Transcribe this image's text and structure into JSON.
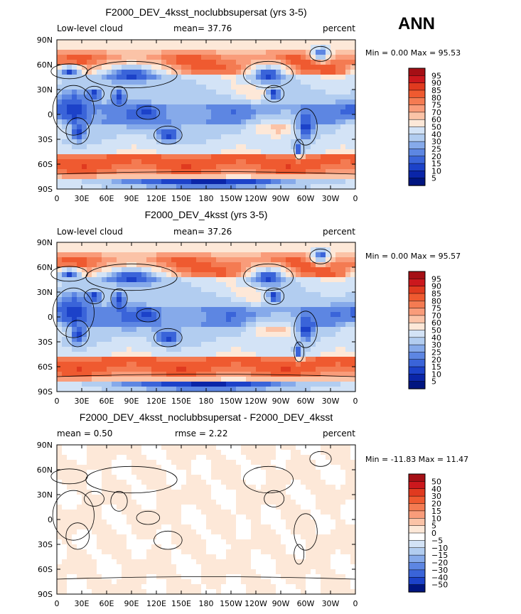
{
  "season_label": "ANN",
  "chart_data": [
    {
      "type": "heatmap",
      "title": "F2000_DEV_4ksst_noclubbsupersat (yrs 3-5)",
      "left_label": "Low-level cloud",
      "stat_text": "mean=  37.76",
      "units": "percent",
      "minmax_text": "Min =    0.00 Max =   95.53",
      "x_ticks": [
        "0",
        "30E",
        "60E",
        "90E",
        "120E",
        "150E",
        "180",
        "150W",
        "120W",
        "90W",
        "60W",
        "30W",
        "0"
      ],
      "y_ticks": [
        "90N",
        "60N",
        "30N",
        "0",
        "30S",
        "60S",
        "90S"
      ],
      "xlim": [
        0,
        360
      ],
      "ylim": [
        -90,
        90
      ],
      "field": "abs",
      "levels": [
        "95",
        "90",
        "85",
        "80",
        "75",
        "70",
        "60",
        "50",
        "40",
        "30",
        "25",
        "20",
        "15",
        "10",
        "5"
      ],
      "colors": [
        "#a50f15",
        "#cb181d",
        "#e03a1f",
        "#ef5a30",
        "#f47b52",
        "#f99c7a",
        "#fbc3a7",
        "#fde8d8",
        "#d3e3f6",
        "#b2cdf0",
        "#86aaea",
        "#5d86e2",
        "#3a64d9",
        "#1c42c9",
        "#0a25a8",
        "#001580"
      ]
    },
    {
      "type": "heatmap",
      "title": "F2000_DEV_4ksst (yrs 3-5)",
      "left_label": "Low-level cloud",
      "stat_text": "mean=  37.26",
      "units": "percent",
      "minmax_text": "Min =    0.00 Max =   95.57",
      "x_ticks": [
        "0",
        "30E",
        "60E",
        "90E",
        "120E",
        "150E",
        "180",
        "150W",
        "120W",
        "90W",
        "60W",
        "30W",
        "0"
      ],
      "y_ticks": [
        "90N",
        "60N",
        "30N",
        "0",
        "30S",
        "60S",
        "90S"
      ],
      "xlim": [
        0,
        360
      ],
      "ylim": [
        -90,
        90
      ],
      "field": "abs",
      "levels": [
        "95",
        "90",
        "85",
        "80",
        "75",
        "70",
        "60",
        "50",
        "40",
        "30",
        "25",
        "20",
        "15",
        "10",
        "5"
      ],
      "colors": [
        "#a50f15",
        "#cb181d",
        "#e03a1f",
        "#ef5a30",
        "#f47b52",
        "#f99c7a",
        "#fbc3a7",
        "#fde8d8",
        "#d3e3f6",
        "#b2cdf0",
        "#86aaea",
        "#5d86e2",
        "#3a64d9",
        "#1c42c9",
        "#0a25a8",
        "#001580"
      ]
    },
    {
      "type": "heatmap",
      "title": "F2000_DEV_4ksst_noclubbsupersat - F2000_DEV_4ksst",
      "left_label": "mean =    0.50",
      "stat_text": "rmse =    2.22",
      "units": "percent",
      "minmax_text": "Min = -11.83 Max =  11.47",
      "x_ticks": [
        "0",
        "30E",
        "60E",
        "90E",
        "120E",
        "150E",
        "180",
        "150W",
        "120W",
        "90W",
        "60W",
        "30W",
        "0"
      ],
      "y_ticks": [
        "90N",
        "60N",
        "30N",
        "0",
        "30S",
        "60S",
        "90S"
      ],
      "xlim": [
        0,
        360
      ],
      "ylim": [
        -90,
        90
      ],
      "field": "diff",
      "levels": [
        "50",
        "40",
        "30",
        "20",
        "15",
        "10",
        "5",
        "0",
        "−5",
        "−10",
        "−15",
        "−20",
        "−30",
        "−40",
        "−50"
      ],
      "colors": [
        "#a50f15",
        "#cb181d",
        "#e03a1f",
        "#ef5a30",
        "#f47b52",
        "#f99c7a",
        "#fbc3a7",
        "#fde8d8",
        "#ffffff",
        "#d3e3f6",
        "#b2cdf0",
        "#86aaea",
        "#5d86e2",
        "#3a64d9",
        "#1c42c9",
        "#001580"
      ]
    }
  ]
}
